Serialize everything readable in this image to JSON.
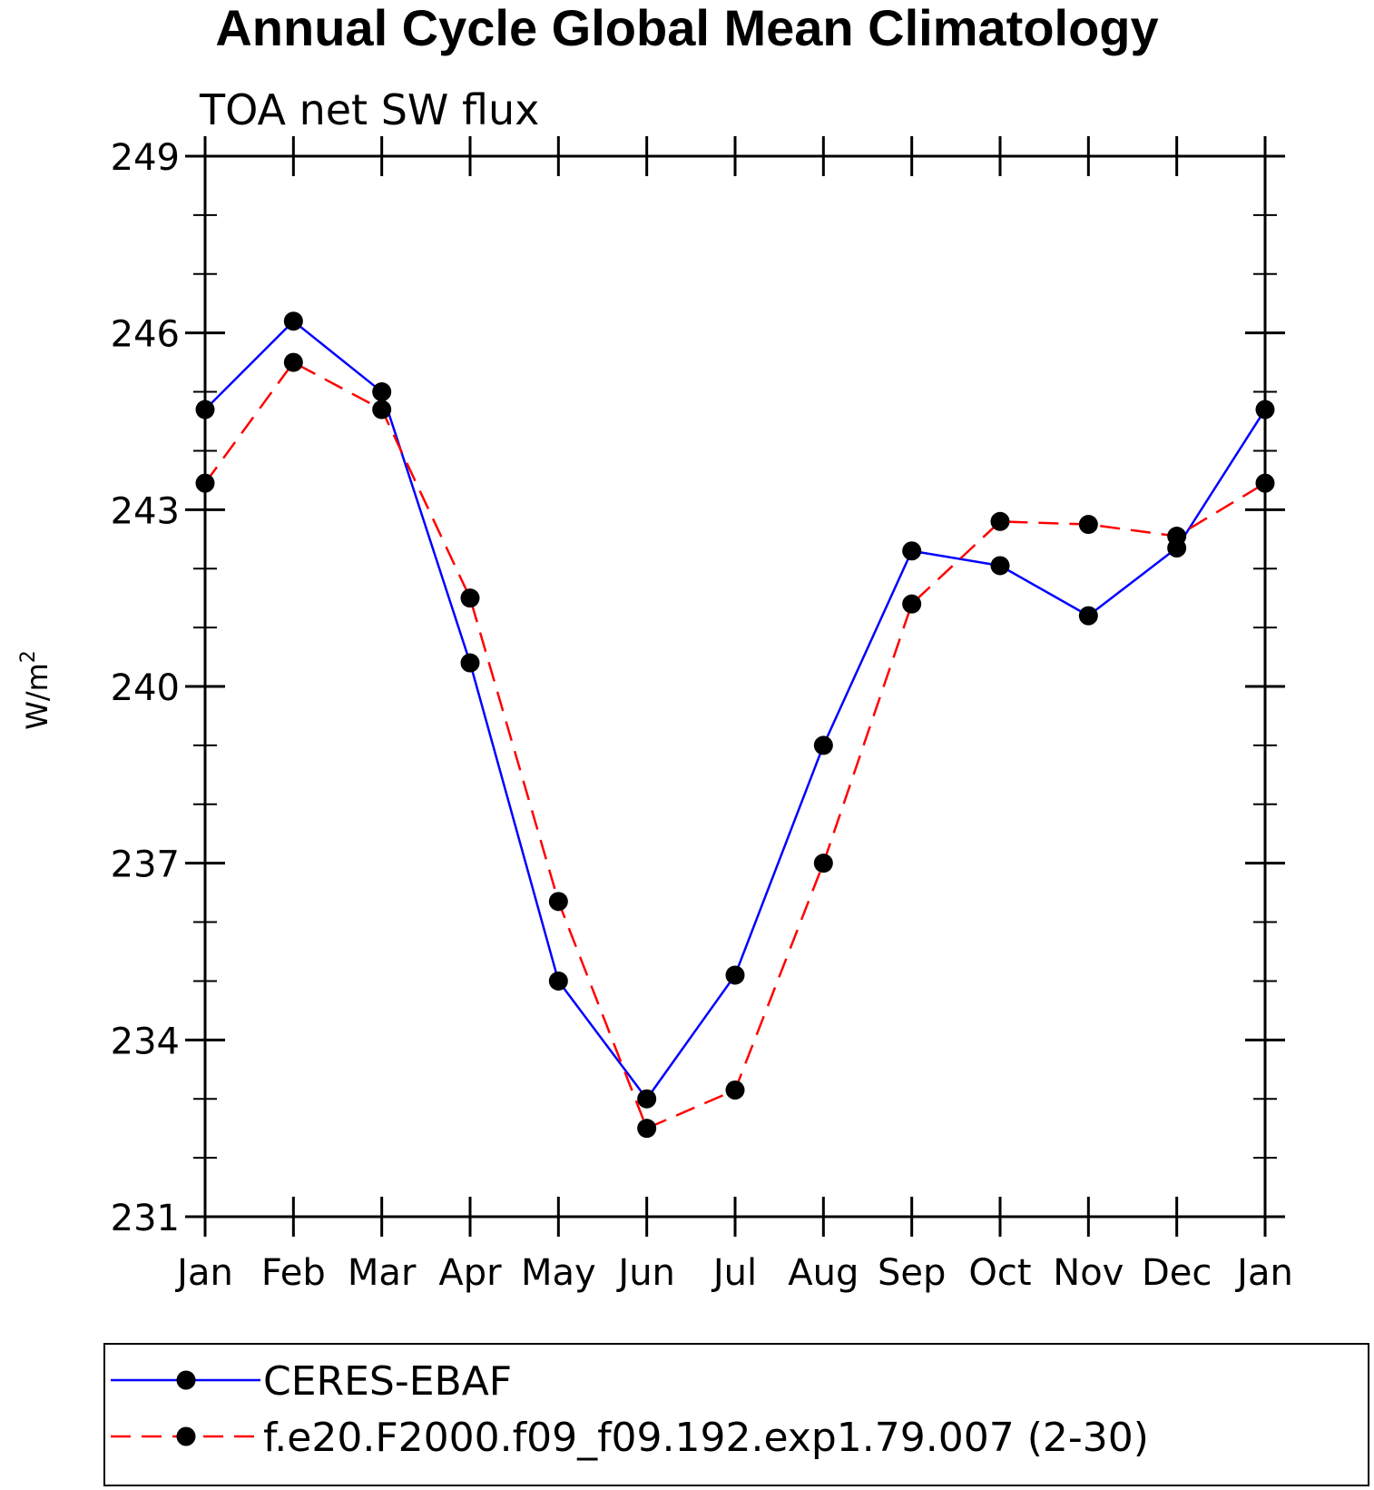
{
  "chart_data": {
    "type": "line",
    "title": "Annual Cycle Global Mean Climatology",
    "subtitle": "TOA net SW flux",
    "ylabel_base": "W/m",
    "ylabel_sup": "2",
    "xlabel": "",
    "categories": [
      "Jan",
      "Feb",
      "Mar",
      "Apr",
      "May",
      "Jun",
      "Jul",
      "Aug",
      "Sep",
      "Oct",
      "Nov",
      "Dec",
      "Jan"
    ],
    "ylim": [
      231,
      249
    ],
    "yticks": [
      231,
      234,
      237,
      240,
      243,
      246,
      249
    ],
    "yminor_step": 1,
    "grid": false,
    "legend_position": "bottom",
    "series": [
      {
        "name": "CERES-EBAF",
        "color": "#0000ff",
        "dash": "solid",
        "marker": "filled-circle",
        "values": [
          244.7,
          246.2,
          245.0,
          240.4,
          235.0,
          233.0,
          235.1,
          239.0,
          242.3,
          242.05,
          241.2,
          242.35,
          244.7
        ]
      },
      {
        "name": "f.e20.F2000.f09_f09.192.exp1.79.007 (2-30)",
        "color": "#ff0000",
        "dash": "dashed",
        "marker": "filled-circle",
        "values": [
          243.45,
          245.5,
          244.7,
          241.5,
          236.35,
          232.5,
          233.15,
          237.0,
          241.4,
          242.8,
          242.75,
          242.55,
          243.45
        ]
      }
    ]
  }
}
